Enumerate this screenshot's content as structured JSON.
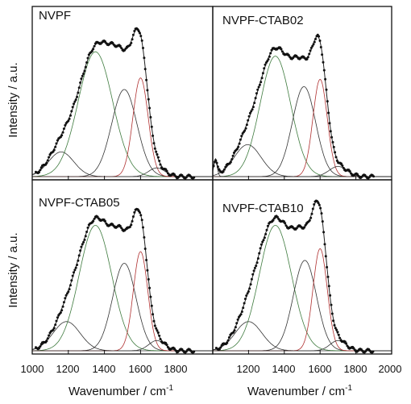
{
  "figure": {
    "ylabel": "Intensity / a.u.",
    "xlabel": "Wavenumber / cm",
    "xlabel_superscript": "-1",
    "xticks_left": [
      "1000",
      "1200",
      "1400",
      "1600",
      "1800"
    ],
    "xticks_right": [
      "1200",
      "1400",
      "1600",
      "1800",
      "2000"
    ]
  },
  "chart_data": [
    {
      "type": "line",
      "title": "NVPF",
      "xlim": [
        1000,
        2000
      ],
      "ylim": [
        0,
        1.15
      ],
      "x_ticks": [
        1000,
        1200,
        1400,
        1600,
        1800
      ],
      "y_ticks": [],
      "series": [
        {
          "role": "measured",
          "style": "dots",
          "color": "#111111"
        },
        {
          "role": "envelope",
          "color": "#222222"
        },
        {
          "role": "component",
          "center": 1160,
          "height": 0.17,
          "width": 70,
          "color": "#333333"
        },
        {
          "role": "component",
          "center": 1350,
          "height": 0.86,
          "width": 95,
          "color": "#3d7a3d"
        },
        {
          "role": "component",
          "center": 1510,
          "height": 0.6,
          "width": 70,
          "color": "#333333"
        },
        {
          "role": "component",
          "center": 1600,
          "height": 0.68,
          "width": 42,
          "color": "#b03030"
        },
        {
          "role": "component",
          "center": 1690,
          "height": 0.06,
          "width": 45,
          "color": "#333333"
        }
      ]
    },
    {
      "type": "line",
      "title": "NVPF-CTAB02",
      "xlim": [
        1000,
        2000
      ],
      "ylim": [
        0,
        1.15
      ],
      "x_ticks": [
        1200,
        1400,
        1600,
        1800,
        2000
      ],
      "y_ticks": [],
      "series": [
        {
          "role": "measured",
          "style": "dots",
          "color": "#111111"
        },
        {
          "role": "envelope",
          "color": "#222222"
        },
        {
          "role": "component",
          "center": 1195,
          "height": 0.22,
          "width": 75,
          "color": "#333333"
        },
        {
          "role": "component",
          "center": 1350,
          "height": 0.83,
          "width": 85,
          "color": "#3d7a3d"
        },
        {
          "role": "component",
          "center": 1510,
          "height": 0.62,
          "width": 65,
          "color": "#333333"
        },
        {
          "role": "component",
          "center": 1600,
          "height": 0.67,
          "width": 40,
          "color": "#b03030"
        },
        {
          "role": "component",
          "center": 1700,
          "height": 0.07,
          "width": 50,
          "color": "#333333"
        },
        {
          "role": "component",
          "center": 1015,
          "height": 0.11,
          "width": 10,
          "color": "#333333"
        }
      ]
    },
    {
      "type": "line",
      "title": "NVPF-CTAB05",
      "xlim": [
        1000,
        2000
      ],
      "ylim": [
        0,
        1.15
      ],
      "x_ticks": [
        1000,
        1200,
        1400,
        1600,
        1800
      ],
      "y_ticks": [],
      "series": [
        {
          "role": "measured",
          "style": "dots",
          "color": "#111111"
        },
        {
          "role": "envelope",
          "color": "#222222"
        },
        {
          "role": "component",
          "center": 1190,
          "height": 0.2,
          "width": 75,
          "color": "#333333"
        },
        {
          "role": "component",
          "center": 1350,
          "height": 0.86,
          "width": 90,
          "color": "#3d7a3d"
        },
        {
          "role": "component",
          "center": 1510,
          "height": 0.6,
          "width": 65,
          "color": "#333333"
        },
        {
          "role": "component",
          "center": 1600,
          "height": 0.68,
          "width": 40,
          "color": "#b03030"
        },
        {
          "role": "component",
          "center": 1690,
          "height": 0.07,
          "width": 45,
          "color": "#333333"
        }
      ]
    },
    {
      "type": "line",
      "title": "NVPF-CTAB10",
      "xlim": [
        1000,
        2000
      ],
      "ylim": [
        0,
        1.15
      ],
      "x_ticks": [
        1200,
        1400,
        1600,
        1800,
        2000
      ],
      "y_ticks": [],
      "series": [
        {
          "role": "measured",
          "style": "dots",
          "color": "#111111"
        },
        {
          "role": "envelope",
          "color": "#222222"
        },
        {
          "role": "component",
          "center": 1200,
          "height": 0.2,
          "width": 75,
          "color": "#333333"
        },
        {
          "role": "component",
          "center": 1350,
          "height": 0.86,
          "width": 90,
          "color": "#3d7a3d"
        },
        {
          "role": "component",
          "center": 1515,
          "height": 0.62,
          "width": 65,
          "color": "#333333"
        },
        {
          "role": "component",
          "center": 1600,
          "height": 0.7,
          "width": 40,
          "color": "#b03030"
        },
        {
          "role": "component",
          "center": 1700,
          "height": 0.07,
          "width": 45,
          "color": "#333333"
        }
      ]
    }
  ]
}
